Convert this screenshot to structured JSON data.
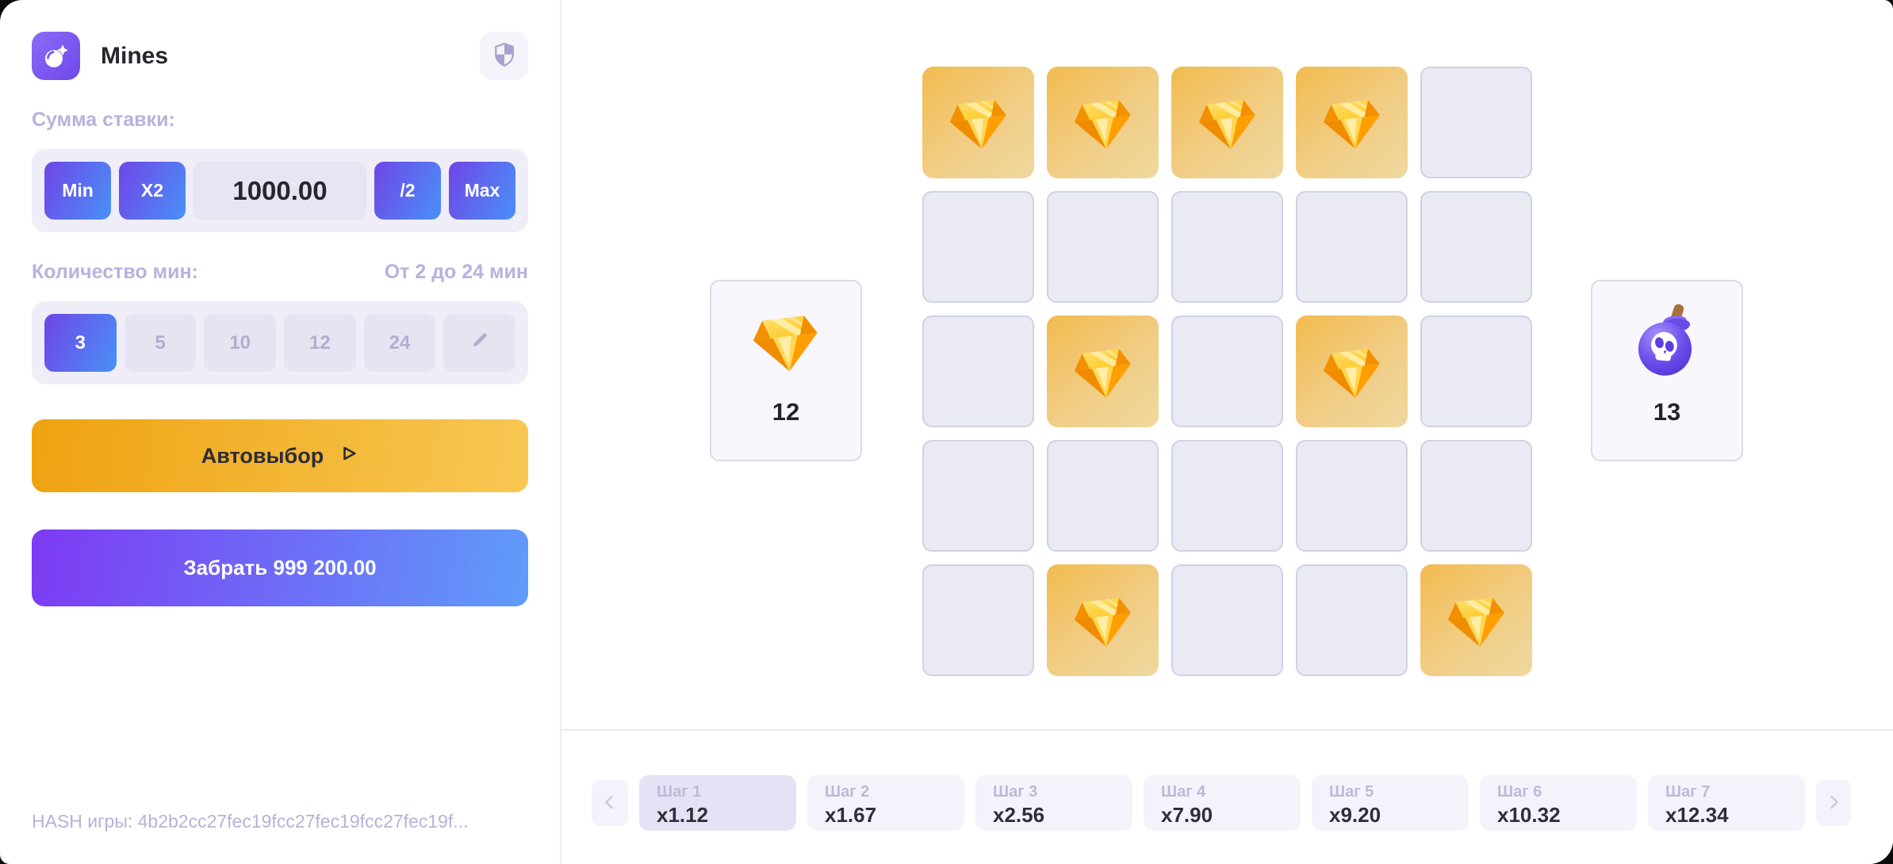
{
  "app": {
    "title": "Mines"
  },
  "sidebar": {
    "bet": {
      "label": "Сумма ставки:",
      "min": "Min",
      "x2": "X2",
      "value": "1000.00",
      "half": "/2",
      "max": "Max"
    },
    "mines": {
      "label": "Количество мин:",
      "range": "От 2 до 24 мин",
      "options": [
        {
          "label": "3",
          "active": true
        },
        {
          "label": "5",
          "active": false
        },
        {
          "label": "10",
          "active": false
        },
        {
          "label": "12",
          "active": false
        },
        {
          "label": "24",
          "active": false
        }
      ]
    },
    "autopick_label": "Автовыбор",
    "cashout_label": "Забрать 999 200.00",
    "hash": "HASH игры: 4b2b2cc27fec19fcc27fec19fcc27fec19f..."
  },
  "board": {
    "rows": 5,
    "cols": 5,
    "revealed_cells": [
      [
        0,
        0
      ],
      [
        0,
        1
      ],
      [
        0,
        2
      ],
      [
        0,
        3
      ],
      [
        2,
        1
      ],
      [
        2,
        3
      ],
      [
        4,
        1
      ],
      [
        4,
        4
      ]
    ],
    "left_counter": {
      "value": "12",
      "icon": "diamond-icon"
    },
    "right_counter": {
      "value": "13",
      "icon": "bomb-skull-icon"
    }
  },
  "steps": {
    "items": [
      {
        "label": "Шаг 1",
        "multiplier": "x1.12",
        "active": true
      },
      {
        "label": "Шаг 2",
        "multiplier": "x1.67",
        "active": false
      },
      {
        "label": "Шаг 3",
        "multiplier": "x2.56",
        "active": false
      },
      {
        "label": "Шаг 4",
        "multiplier": "x7.90",
        "active": false
      },
      {
        "label": "Шаг 5",
        "multiplier": "x9.20",
        "active": false
      },
      {
        "label": "Шаг 6",
        "multiplier": "x10.32",
        "active": false
      },
      {
        "label": "Шаг 7",
        "multiplier": "x12.34",
        "active": false
      }
    ]
  },
  "icons": {
    "logo": "bomb-icon",
    "fairness": "shield-check-icon",
    "custom_mines": "pencil-icon",
    "autopick": "play-icon",
    "steps_prev": "chevron-left-icon",
    "steps_next": "chevron-right-icon",
    "gem": "diamond-icon",
    "mine": "bomb-skull-icon"
  },
  "colors": {
    "accent_gradient": [
      "#6d49e8",
      "#4b8df6"
    ],
    "autopick_gradient": [
      "#efa211",
      "#f8c854"
    ],
    "cashout_gradient": [
      "#7d3af3",
      "#5f9cfa"
    ],
    "revealed_tile_gradient": [
      "#f2bb4e",
      "#efd89f"
    ],
    "hidden_tile_bg": "#eaeaf2",
    "hidden_tile_border": "#ced2e5",
    "panel_bg": "#efedf8",
    "muted_label": "#b7b2dd",
    "step_active_bg": "#e6e2f6",
    "dark_text": "#26262e"
  }
}
